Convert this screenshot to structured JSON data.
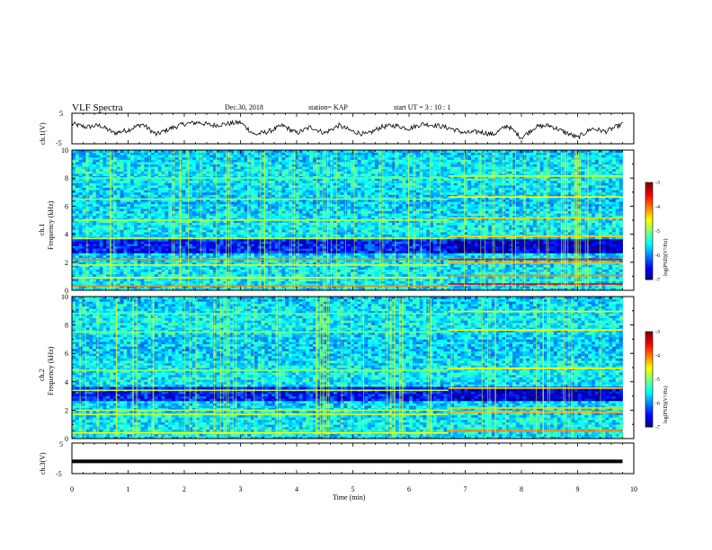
{
  "header": {
    "title": "VLF Spectra",
    "date": "Dec.30, 2018",
    "station": "station= KAP",
    "start": "start  UT =   3  : 10 : 1"
  },
  "chart_data": [
    {
      "type": "line",
      "name": "ch1-waveform",
      "ylabel": "ch.1(V)",
      "ylim": [
        -5,
        5
      ],
      "yticks": [
        "5",
        "-5"
      ],
      "x": [
        0,
        0.25,
        0.5,
        0.75,
        1.0,
        1.25,
        1.5,
        1.75,
        2.0,
        2.25,
        2.5,
        2.75,
        3.0,
        3.25,
        3.5,
        3.75,
        4.0,
        4.25,
        4.5,
        4.75,
        5.0,
        5.25,
        5.5,
        5.75,
        6.0,
        6.25,
        6.5,
        6.75,
        7.0,
        7.25,
        7.5,
        7.75,
        8.0,
        8.25,
        8.5,
        8.75,
        9.0,
        9.25,
        9.5,
        9.8
      ],
      "y": [
        1.5,
        0.5,
        1.0,
        -1.5,
        -0.5,
        1.5,
        -2.0,
        0.0,
        1.5,
        2.0,
        1.0,
        1.5,
        2.0,
        -2.0,
        -1.0,
        1.0,
        -1.5,
        0.5,
        -1.5,
        1.0,
        -1.0,
        -2.0,
        0.5,
        1.0,
        0.0,
        1.5,
        1.0,
        0.0,
        -1.5,
        -1.0,
        -2.0,
        1.0,
        -3.0,
        0.5,
        1.0,
        -1.0,
        -3.0,
        0.0,
        -1.0,
        1.5
      ]
    },
    {
      "type": "heatmap",
      "name": "ch1-spectrogram",
      "ylabel": "ch.1\nFrequency (kHz)",
      "ylim": [
        0,
        10
      ],
      "yticks": [
        "0",
        "2",
        "4",
        "6",
        "8",
        "10"
      ],
      "colorbar": {
        "label": "log(PSD)(V²/Hz)",
        "range": [
          -7,
          -3
        ],
        "ticks": [
          "-3",
          "-4",
          "-5",
          "-6",
          "-7"
        ]
      },
      "band_change_time_min": 6.7,
      "bands_kHz": [
        {
          "f": 0.3,
          "level": -4.0
        },
        {
          "f": 0.9,
          "level": -4.5
        },
        {
          "f": 1.8,
          "level": -4.7
        },
        {
          "f": 2.2,
          "level": -4.0
        },
        {
          "f": 3.7,
          "level": -4.8
        },
        {
          "f": 5.0,
          "level": -4.8
        },
        {
          "f": 6.5,
          "level": -5.0
        },
        {
          "f": 8.0,
          "level": -5.2
        }
      ]
    },
    {
      "type": "heatmap",
      "name": "ch2-spectrogram",
      "ylabel": "ch.2\nFrequency (kHz)",
      "ylim": [
        0,
        10
      ],
      "yticks": [
        "0",
        "2",
        "4",
        "6",
        "8",
        "10"
      ],
      "colorbar": {
        "label": "log(PSD)(V²/Hz)",
        "range": [
          -7,
          -3
        ],
        "ticks": [
          "-3",
          "-4",
          "-5",
          "-6",
          "-7"
        ]
      },
      "band_change_time_min": 6.7,
      "bands_kHz": [
        {
          "f": 0.4,
          "level": -4.5
        },
        {
          "f": 1.7,
          "level": -4.7
        },
        {
          "f": 2.0,
          "level": -4.8
        },
        {
          "f": 3.4,
          "level": -4.8
        },
        {
          "f": 4.8,
          "level": -5.0
        },
        {
          "f": 7.5,
          "level": -5.0
        },
        {
          "f": 8.8,
          "level": -5.2
        }
      ]
    },
    {
      "type": "line",
      "name": "ch3-waveform",
      "ylabel": "ch.3(V)",
      "ylim": [
        -5,
        5
      ],
      "yticks": [
        "5",
        "-5"
      ],
      "x": [
        0,
        9.8
      ],
      "y": [
        -1.0,
        -1.0
      ]
    }
  ],
  "xaxis": {
    "xlabel": "Time  (min)",
    "xlim": [
      0,
      10
    ],
    "xticks": [
      "0",
      "1",
      "2",
      "3",
      "4",
      "5",
      "6",
      "7",
      "8",
      "9",
      "10"
    ]
  }
}
